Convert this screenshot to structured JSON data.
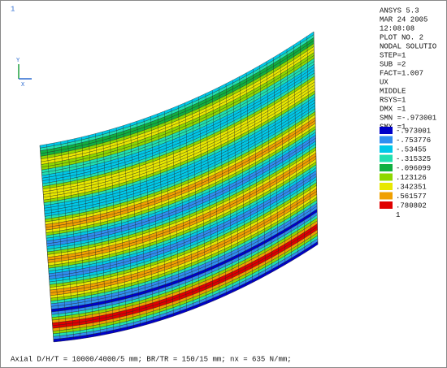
{
  "window_number": "1",
  "triad": {
    "y_label": "Y",
    "x_label": "X"
  },
  "info": [
    "ANSYS 5.3",
    "MAR 24 2005",
    "12:08:08",
    "PLOT NO.   2",
    "NODAL SOLUTIO",
    "STEP=1",
    "SUB =2",
    "FACT=1.007",
    "UX",
    "MIDDLE",
    "RSYS=1",
    "DMX =1",
    "SMN =-.973001",
    "SMX =1"
  ],
  "legend": [
    {
      "color": "#0000c8",
      "label": "-.973001"
    },
    {
      "color": "#2f8ef0",
      "label": "-.753776"
    },
    {
      "color": "#00c8e8",
      "label": "-.53455"
    },
    {
      "color": "#20e0b0",
      "label": "-.315325"
    },
    {
      "color": "#10b040",
      "label": "-.096099"
    },
    {
      "color": "#8ed800",
      "label": ".123126"
    },
    {
      "color": "#e8e800",
      "label": ".342351"
    },
    {
      "color": "#f0a000",
      "label": ".561577"
    },
    {
      "color": "#e00000",
      "label": ".780802"
    },
    {
      "color": null,
      "label": "1"
    }
  ],
  "footer": "Axial D/H/T = 10000/4000/5 mm; BR/TR = 150/15 mm; nx = 635 N/mm;"
}
